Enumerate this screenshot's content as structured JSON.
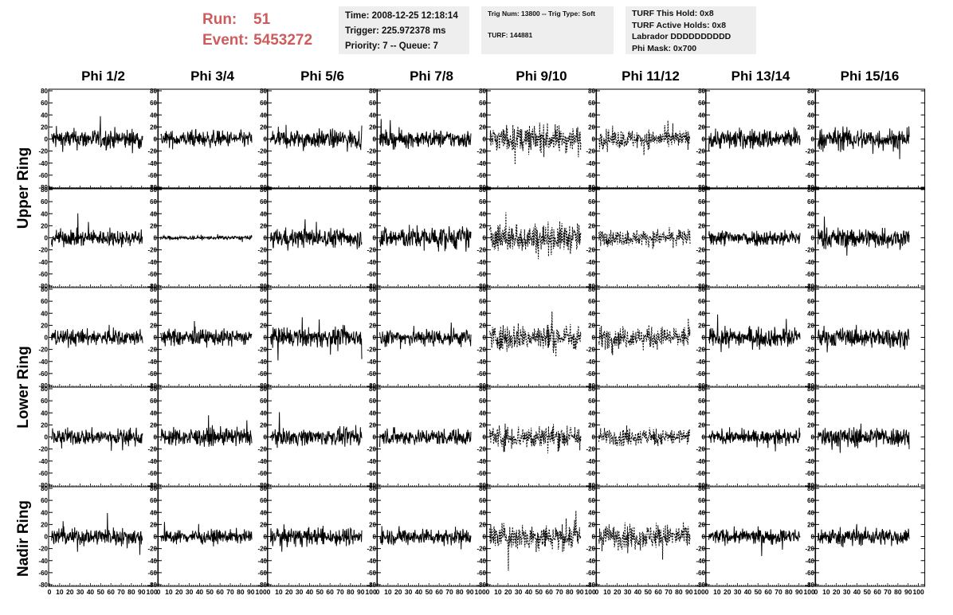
{
  "header": {
    "run_label": "Run:",
    "run_value": "51",
    "event_label": "Event:",
    "event_value": "5453272",
    "accent_color": "#cd5c5c"
  },
  "info_boxes": {
    "time": [
      "Time: 2008-12-25 12:18:14",
      "Trigger: 225.972378 ms",
      "Priority: 7 -- Queue: 7"
    ],
    "trig": [
      "Trig Num: 13800 -- Trig Type: Soft",
      "TURF: 144881"
    ],
    "turf": [
      "TURF This Hold: 0x8",
      "TURF Active Holds: 0x8",
      "Labrador DDDDDDDDDD",
      "Phi Mask: 0x700"
    ]
  },
  "columns": [
    "Phi 1/2",
    "Phi 3/4",
    "Phi 5/6",
    "Phi 7/8",
    "Phi 9/10",
    "Phi 11/12",
    "Phi 13/14",
    "Phi 15/16"
  ],
  "rows": [
    {
      "label": "Upper Ring",
      "panels": 2
    },
    {
      "label": "Lower Ring",
      "panels": 2
    },
    {
      "label": "Nadir Ring",
      "panels": 1
    }
  ],
  "chart_data": {
    "type": "line",
    "title": "",
    "xlabel": "",
    "ylabel": "",
    "xlim": [
      0,
      100
    ],
    "ylim": [
      -80,
      80
    ],
    "x_ticks": [
      0,
      10,
      20,
      30,
      40,
      50,
      60,
      70,
      80,
      90,
      100
    ],
    "y_ticks": [
      -80,
      -60,
      -40,
      -20,
      0,
      20,
      40,
      60,
      80
    ],
    "grid": false,
    "legend": "none",
    "dashed_columns": [
      "Phi 9/10",
      "Phi 11/12"
    ],
    "panel_amplitudes": [
      [
        15,
        12,
        14,
        13,
        20,
        14,
        15,
        16
      ],
      [
        12,
        3,
        14,
        17,
        22,
        12,
        12,
        15
      ],
      [
        12,
        12,
        14,
        13,
        20,
        16,
        14,
        14
      ],
      [
        12,
        13,
        12,
        12,
        18,
        13,
        10,
        15
      ],
      [
        13,
        10,
        13,
        12,
        20,
        18,
        11,
        13
      ]
    ]
  }
}
